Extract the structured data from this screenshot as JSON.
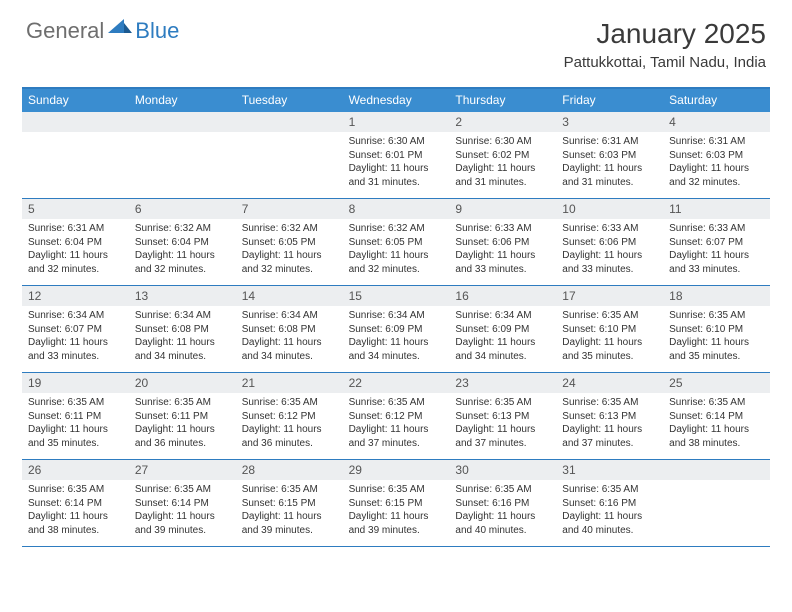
{
  "logo": {
    "general": "General",
    "blue": "Blue"
  },
  "title": "January 2025",
  "location": "Pattukkottai, Tamil Nadu, India",
  "colors": {
    "header_bg": "#3a8dd0",
    "border": "#2e7cc0",
    "daynum_bg": "#eceef0",
    "logo_gray": "#6e6e6e",
    "logo_blue": "#2e7cc0"
  },
  "days_of_week": [
    "Sunday",
    "Monday",
    "Tuesday",
    "Wednesday",
    "Thursday",
    "Friday",
    "Saturday"
  ],
  "weeks": [
    [
      {
        "n": "",
        "sr": "",
        "ss": "",
        "dl": ""
      },
      {
        "n": "",
        "sr": "",
        "ss": "",
        "dl": ""
      },
      {
        "n": "",
        "sr": "",
        "ss": "",
        "dl": ""
      },
      {
        "n": "1",
        "sr": "6:30 AM",
        "ss": "6:01 PM",
        "dl": "11 hours and 31 minutes."
      },
      {
        "n": "2",
        "sr": "6:30 AM",
        "ss": "6:02 PM",
        "dl": "11 hours and 31 minutes."
      },
      {
        "n": "3",
        "sr": "6:31 AM",
        "ss": "6:03 PM",
        "dl": "11 hours and 31 minutes."
      },
      {
        "n": "4",
        "sr": "6:31 AM",
        "ss": "6:03 PM",
        "dl": "11 hours and 32 minutes."
      }
    ],
    [
      {
        "n": "5",
        "sr": "6:31 AM",
        "ss": "6:04 PM",
        "dl": "11 hours and 32 minutes."
      },
      {
        "n": "6",
        "sr": "6:32 AM",
        "ss": "6:04 PM",
        "dl": "11 hours and 32 minutes."
      },
      {
        "n": "7",
        "sr": "6:32 AM",
        "ss": "6:05 PM",
        "dl": "11 hours and 32 minutes."
      },
      {
        "n": "8",
        "sr": "6:32 AM",
        "ss": "6:05 PM",
        "dl": "11 hours and 32 minutes."
      },
      {
        "n": "9",
        "sr": "6:33 AM",
        "ss": "6:06 PM",
        "dl": "11 hours and 33 minutes."
      },
      {
        "n": "10",
        "sr": "6:33 AM",
        "ss": "6:06 PM",
        "dl": "11 hours and 33 minutes."
      },
      {
        "n": "11",
        "sr": "6:33 AM",
        "ss": "6:07 PM",
        "dl": "11 hours and 33 minutes."
      }
    ],
    [
      {
        "n": "12",
        "sr": "6:34 AM",
        "ss": "6:07 PM",
        "dl": "11 hours and 33 minutes."
      },
      {
        "n": "13",
        "sr": "6:34 AM",
        "ss": "6:08 PM",
        "dl": "11 hours and 34 minutes."
      },
      {
        "n": "14",
        "sr": "6:34 AM",
        "ss": "6:08 PM",
        "dl": "11 hours and 34 minutes."
      },
      {
        "n": "15",
        "sr": "6:34 AM",
        "ss": "6:09 PM",
        "dl": "11 hours and 34 minutes."
      },
      {
        "n": "16",
        "sr": "6:34 AM",
        "ss": "6:09 PM",
        "dl": "11 hours and 34 minutes."
      },
      {
        "n": "17",
        "sr": "6:35 AM",
        "ss": "6:10 PM",
        "dl": "11 hours and 35 minutes."
      },
      {
        "n": "18",
        "sr": "6:35 AM",
        "ss": "6:10 PM",
        "dl": "11 hours and 35 minutes."
      }
    ],
    [
      {
        "n": "19",
        "sr": "6:35 AM",
        "ss": "6:11 PM",
        "dl": "11 hours and 35 minutes."
      },
      {
        "n": "20",
        "sr": "6:35 AM",
        "ss": "6:11 PM",
        "dl": "11 hours and 36 minutes."
      },
      {
        "n": "21",
        "sr": "6:35 AM",
        "ss": "6:12 PM",
        "dl": "11 hours and 36 minutes."
      },
      {
        "n": "22",
        "sr": "6:35 AM",
        "ss": "6:12 PM",
        "dl": "11 hours and 37 minutes."
      },
      {
        "n": "23",
        "sr": "6:35 AM",
        "ss": "6:13 PM",
        "dl": "11 hours and 37 minutes."
      },
      {
        "n": "24",
        "sr": "6:35 AM",
        "ss": "6:13 PM",
        "dl": "11 hours and 37 minutes."
      },
      {
        "n": "25",
        "sr": "6:35 AM",
        "ss": "6:14 PM",
        "dl": "11 hours and 38 minutes."
      }
    ],
    [
      {
        "n": "26",
        "sr": "6:35 AM",
        "ss": "6:14 PM",
        "dl": "11 hours and 38 minutes."
      },
      {
        "n": "27",
        "sr": "6:35 AM",
        "ss": "6:14 PM",
        "dl": "11 hours and 39 minutes."
      },
      {
        "n": "28",
        "sr": "6:35 AM",
        "ss": "6:15 PM",
        "dl": "11 hours and 39 minutes."
      },
      {
        "n": "29",
        "sr": "6:35 AM",
        "ss": "6:15 PM",
        "dl": "11 hours and 39 minutes."
      },
      {
        "n": "30",
        "sr": "6:35 AM",
        "ss": "6:16 PM",
        "dl": "11 hours and 40 minutes."
      },
      {
        "n": "31",
        "sr": "6:35 AM",
        "ss": "6:16 PM",
        "dl": "11 hours and 40 minutes."
      },
      {
        "n": "",
        "sr": "",
        "ss": "",
        "dl": ""
      }
    ]
  ],
  "labels": {
    "sunrise": "Sunrise:",
    "sunset": "Sunset:",
    "daylight": "Daylight:"
  }
}
